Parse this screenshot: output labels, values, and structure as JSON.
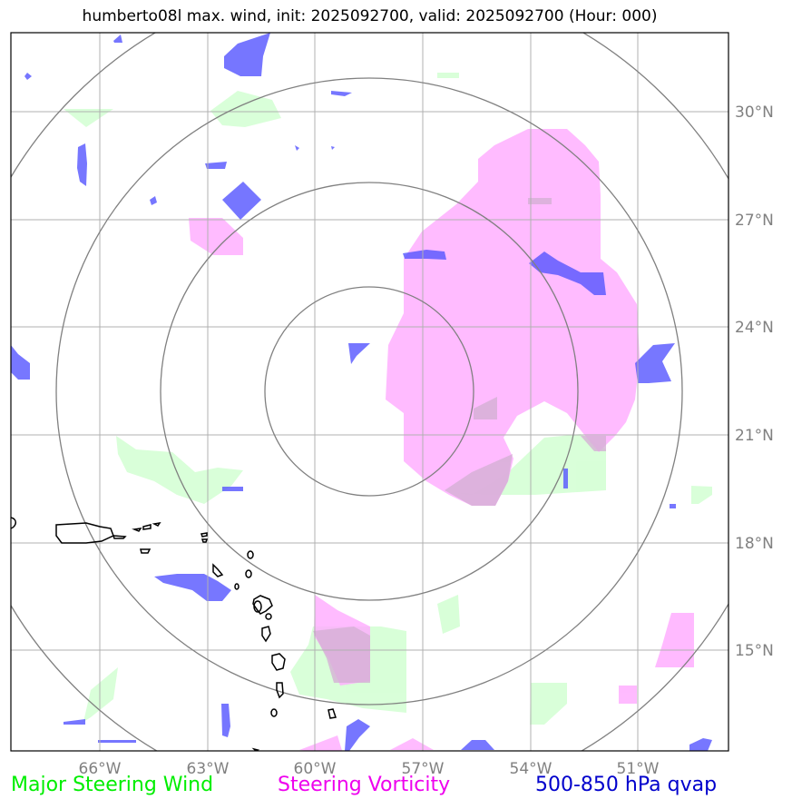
{
  "title": "humberto08l max. wind, init: 2025092700, valid: 2025092700 (Hour: 000)",
  "lon_labels": [
    "66°W",
    "63°W",
    "60°W",
    "57°W",
    "54°W",
    "51°W"
  ],
  "lat_labels": [
    "30°N",
    "27°N",
    "24°N",
    "21°N",
    "18°N",
    "15°N"
  ],
  "legend": [
    {
      "label": "Major Steering Wind",
      "color": "#00ee00"
    },
    {
      "label": "Steering Vorticity",
      "color": "#ee00ee"
    },
    {
      "label": "500-850 hPa qvap",
      "color": "#0000cc"
    }
  ],
  "colors": {
    "wind_fill": "#ccffcc",
    "vorticity_fill": "#ffaaff",
    "qvap_fill": "#5555ff",
    "grid": "#b0b0b0",
    "rings": "#808080",
    "coast": "#000000"
  },
  "range_rings_count": 4
}
